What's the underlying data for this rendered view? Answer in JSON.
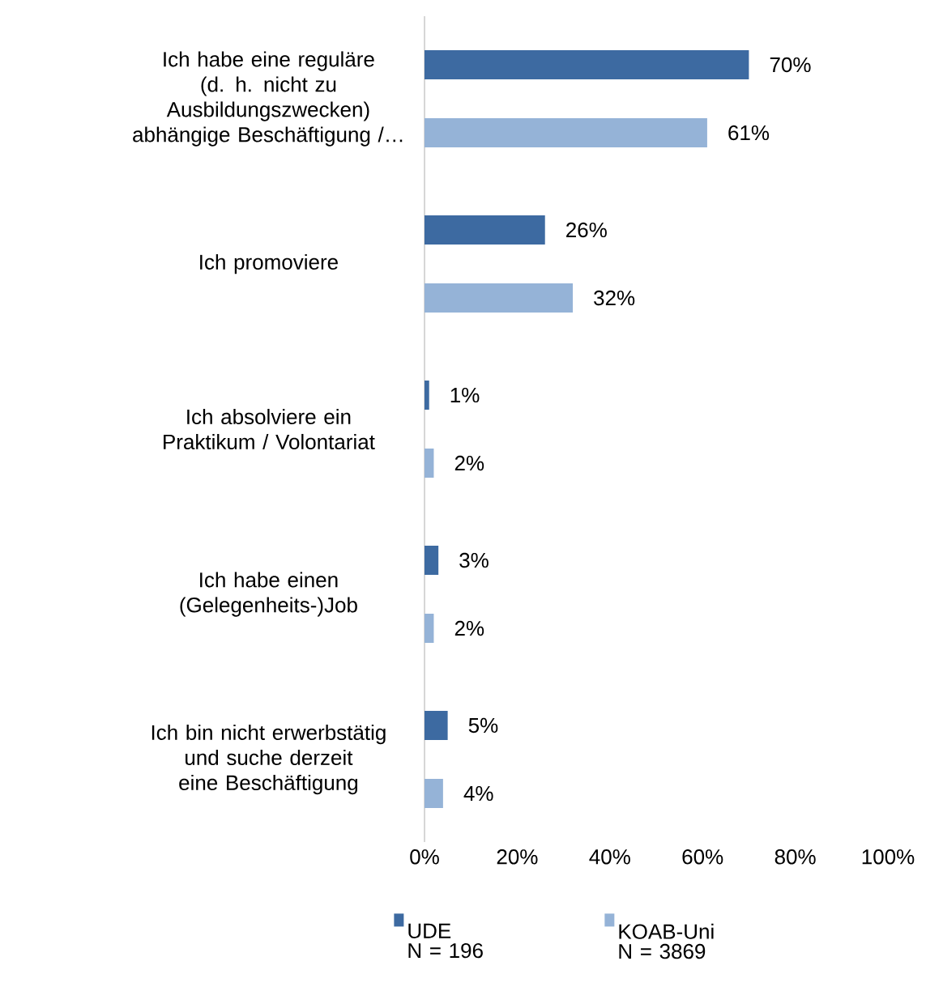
{
  "chart_data": {
    "type": "bar",
    "orientation": "horizontal",
    "categories": [
      "Ich habe eine reguläre (d. h. nicht zu Ausbildungszwecken) abhängige Beschäftigung /…",
      "Ich promoviere",
      "Ich absolviere ein Praktikum / Volontariat",
      "Ich habe einen (Gelegenheits-)Job",
      "Ich bin nicht erwerbstätig und suche derzeit eine Beschäftigung"
    ],
    "series": [
      {
        "name": "UDE",
        "color": "#3d6aa1",
        "values": [
          70,
          26,
          1,
          3,
          5
        ],
        "value_labels": [
          "70%",
          "26%",
          "1%",
          "3%",
          "5%"
        ]
      },
      {
        "name": "KOAB-Uni",
        "color": "#95b3d7",
        "values": [
          61,
          32,
          2,
          2,
          4
        ],
        "value_labels": [
          "61%",
          "32%",
          "2%",
          "2%",
          "4%"
        ]
      }
    ],
    "xlim": [
      0,
      100
    ],
    "xticks": [
      {
        "value": 0,
        "label": "0%"
      },
      {
        "value": 20,
        "label": "20%"
      },
      {
        "value": 40,
        "label": "40%"
      },
      {
        "value": 60,
        "label": "60%"
      },
      {
        "value": 80,
        "label": "80%"
      },
      {
        "value": 100,
        "label": "100%"
      }
    ],
    "annotations": [
      "N = 196",
      "N = 3869"
    ],
    "legend": "bottom",
    "grid": false
  }
}
